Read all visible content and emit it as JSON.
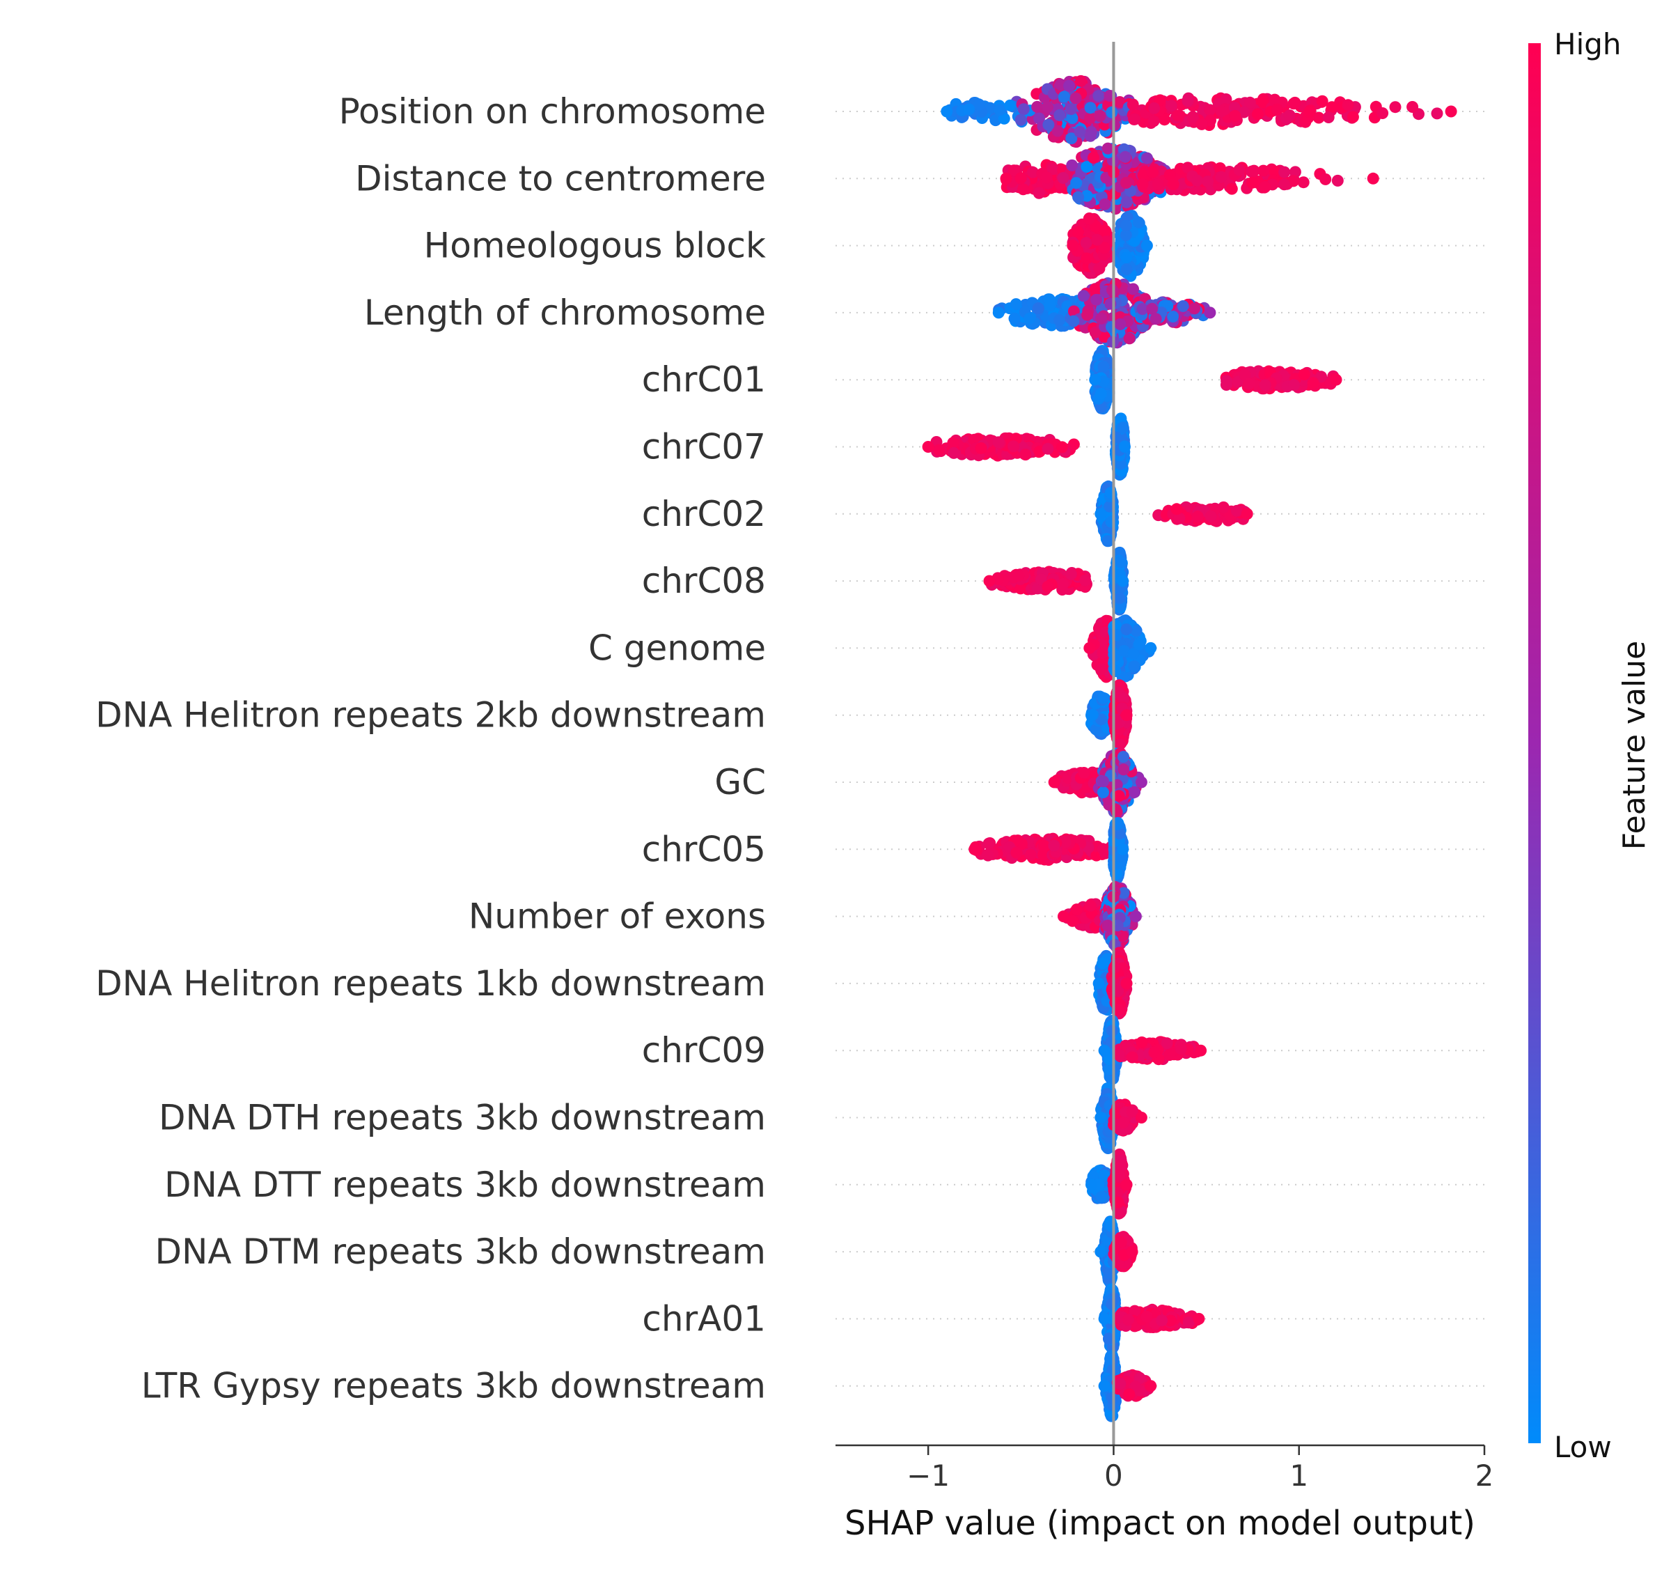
{
  "chart_data": {
    "type": "scatter",
    "subtype": "shap-beeswarm",
    "title": "",
    "xlabel": "SHAP value (impact on model output)",
    "ylabel": "",
    "xlim": [
      -1.5,
      2
    ],
    "x_ticks": [
      -1,
      0,
      1,
      2
    ],
    "x_tick_labels": [
      "−1",
      "0",
      "1",
      "2"
    ],
    "grid": "dotted row guides",
    "zero_line": 0,
    "colorbar": {
      "label": "Feature value",
      "high_label": "High",
      "low_label": "Low",
      "high_color": "#ff0052",
      "mid_color": "#9c27b0",
      "low_color": "#008bfb",
      "placement": "right"
    },
    "features": [
      {
        "name": "Position on chromosome",
        "range": [
          -0.9,
          1.82
        ],
        "groups": [
          {
            "value": "low",
            "from": -0.9,
            "to": -0.5,
            "center": -0.7,
            "spread": 0.15,
            "width": 0.3,
            "weight": 0.08
          },
          {
            "value": "mixed",
            "from": -0.6,
            "to": 0.25,
            "center": -0.2,
            "spread": 0.14,
            "width": 1.0,
            "weight": 0.55
          },
          {
            "value": "high",
            "from": 0.1,
            "to": 1.82,
            "center": 0.6,
            "spread": 0.45,
            "width": 0.45,
            "weight": 0.37
          }
        ]
      },
      {
        "name": "Distance to centromere",
        "range": [
          -0.58,
          1.4
        ],
        "groups": [
          {
            "value": "high",
            "from": -0.58,
            "to": -0.25,
            "center": -0.4,
            "spread": 0.12,
            "width": 0.5,
            "weight": 0.15
          },
          {
            "value": "mixed",
            "from": -0.4,
            "to": 0.3,
            "center": 0.0,
            "spread": 0.13,
            "width": 1.0,
            "weight": 0.55
          },
          {
            "value": "high",
            "from": 0.15,
            "to": 1.4,
            "center": 0.5,
            "spread": 0.3,
            "width": 0.4,
            "weight": 0.3
          }
        ]
      },
      {
        "name": "Homeologous block",
        "range": [
          -0.22,
          0.18
        ],
        "groups": [
          {
            "value": "high",
            "from": -0.22,
            "to": -0.02,
            "center": -0.12,
            "spread": 0.05,
            "width": 0.9,
            "weight": 0.5
          },
          {
            "value": "low",
            "from": 0.02,
            "to": 0.18,
            "center": 0.09,
            "spread": 0.04,
            "width": 1.0,
            "weight": 0.5
          }
        ]
      },
      {
        "name": "Length of chromosome",
        "range": [
          -0.62,
          0.52
        ],
        "groups": [
          {
            "value": "low",
            "from": -0.62,
            "to": -0.1,
            "center": -0.3,
            "spread": 0.15,
            "width": 0.45,
            "weight": 0.3
          },
          {
            "value": "mixed",
            "from": -0.25,
            "to": 0.25,
            "center": 0.0,
            "spread": 0.1,
            "width": 1.0,
            "weight": 0.5
          },
          {
            "value": "mixed",
            "from": 0.1,
            "to": 0.52,
            "center": 0.3,
            "spread": 0.1,
            "width": 0.35,
            "weight": 0.2
          }
        ]
      },
      {
        "name": "chrC01",
        "range": [
          -0.1,
          1.2
        ],
        "groups": [
          {
            "value": "low",
            "from": -0.1,
            "to": -0.02,
            "center": -0.06,
            "spread": 0.02,
            "width": 0.95,
            "weight": 0.75
          },
          {
            "value": "high",
            "from": 0.6,
            "to": 1.2,
            "center": 0.85,
            "spread": 0.18,
            "width": 0.3,
            "weight": 0.25
          }
        ]
      },
      {
        "name": "chrC07",
        "range": [
          -1.0,
          0.06
        ],
        "groups": [
          {
            "value": "high",
            "from": -1.0,
            "to": -0.2,
            "center": -0.6,
            "spread": 0.22,
            "width": 0.3,
            "weight": 0.3
          },
          {
            "value": "low",
            "from": 0.01,
            "to": 0.06,
            "center": 0.035,
            "spread": 0.012,
            "width": 0.95,
            "weight": 0.7
          }
        ]
      },
      {
        "name": "chrC02",
        "range": [
          -0.07,
          0.72
        ],
        "groups": [
          {
            "value": "low",
            "from": -0.07,
            "to": 0.0,
            "center": -0.03,
            "spread": 0.015,
            "width": 0.9,
            "weight": 0.82
          },
          {
            "value": "high",
            "from": 0.21,
            "to": 0.72,
            "center": 0.5,
            "spread": 0.15,
            "width": 0.25,
            "weight": 0.18
          }
        ]
      },
      {
        "name": "chrC08",
        "range": [
          -0.67,
          0.05
        ],
        "groups": [
          {
            "value": "high",
            "from": -0.67,
            "to": -0.13,
            "center": -0.35,
            "spread": 0.16,
            "width": 0.3,
            "weight": 0.3
          },
          {
            "value": "low",
            "from": 0.0,
            "to": 0.05,
            "center": 0.03,
            "spread": 0.01,
            "width": 0.95,
            "weight": 0.7
          }
        ]
      },
      {
        "name": "C genome",
        "range": [
          -0.13,
          0.2
        ],
        "groups": [
          {
            "value": "high",
            "from": -0.13,
            "to": 0.0,
            "center": -0.04,
            "spread": 0.03,
            "width": 0.95,
            "weight": 0.5
          },
          {
            "value": "low",
            "from": 0.0,
            "to": 0.2,
            "center": 0.05,
            "spread": 0.05,
            "width": 0.95,
            "weight": 0.5
          }
        ]
      },
      {
        "name": "DNA Helitron repeats 2kb downstream",
        "range": [
          -0.12,
          0.07
        ],
        "groups": [
          {
            "value": "low",
            "from": -0.12,
            "to": -0.03,
            "center": -0.07,
            "spread": 0.025,
            "width": 0.65,
            "weight": 0.35
          },
          {
            "value": "high",
            "from": -0.01,
            "to": 0.07,
            "center": 0.035,
            "spread": 0.015,
            "width": 1.0,
            "weight": 0.65
          }
        ]
      },
      {
        "name": "GC",
        "range": [
          -0.32,
          0.15
        ],
        "groups": [
          {
            "value": "high",
            "from": -0.32,
            "to": -0.05,
            "center": -0.15,
            "spread": 0.08,
            "width": 0.35,
            "weight": 0.25
          },
          {
            "value": "mixed",
            "from": -0.08,
            "to": 0.15,
            "center": 0.02,
            "spread": 0.04,
            "width": 1.0,
            "weight": 0.75
          }
        ]
      },
      {
        "name": "chrC05",
        "range": [
          -0.75,
          0.05
        ],
        "groups": [
          {
            "value": "high",
            "from": -0.75,
            "to": -0.01,
            "center": -0.35,
            "spread": 0.2,
            "width": 0.35,
            "weight": 0.35
          },
          {
            "value": "low",
            "from": 0.0,
            "to": 0.05,
            "center": 0.02,
            "spread": 0.012,
            "width": 0.95,
            "weight": 0.65
          }
        ]
      },
      {
        "name": "Number of exons",
        "range": [
          -0.27,
          0.12
        ],
        "groups": [
          {
            "value": "high",
            "from": -0.27,
            "to": -0.02,
            "center": -0.1,
            "spread": 0.06,
            "width": 0.4,
            "weight": 0.25
          },
          {
            "value": "mixed",
            "from": -0.05,
            "to": 0.12,
            "center": 0.02,
            "spread": 0.035,
            "width": 1.0,
            "weight": 0.75
          }
        ]
      },
      {
        "name": "DNA Helitron repeats 1kb downstream",
        "range": [
          -0.08,
          0.07
        ],
        "groups": [
          {
            "value": "low",
            "from": -0.08,
            "to": -0.01,
            "center": -0.04,
            "spread": 0.02,
            "width": 0.9,
            "weight": 0.4
          },
          {
            "value": "high",
            "from": -0.01,
            "to": 0.07,
            "center": 0.03,
            "spread": 0.015,
            "width": 1.0,
            "weight": 0.6
          }
        ]
      },
      {
        "name": "chrC09",
        "range": [
          -0.05,
          0.47
        ],
        "groups": [
          {
            "value": "low",
            "from": -0.05,
            "to": 0.02,
            "center": -0.01,
            "spread": 0.012,
            "width": 1.0,
            "weight": 0.7
          },
          {
            "value": "high",
            "from": 0.03,
            "to": 0.47,
            "center": 0.2,
            "spread": 0.12,
            "width": 0.3,
            "weight": 0.3
          }
        ]
      },
      {
        "name": "DNA DTH repeats 3kb downstream",
        "range": [
          -0.07,
          0.15
        ],
        "groups": [
          {
            "value": "low",
            "from": -0.07,
            "to": 0.0,
            "center": -0.03,
            "spread": 0.015,
            "width": 1.0,
            "weight": 0.7
          },
          {
            "value": "high",
            "from": 0.0,
            "to": 0.15,
            "center": 0.05,
            "spread": 0.03,
            "width": 0.45,
            "weight": 0.3
          }
        ]
      },
      {
        "name": "DNA DTT repeats 3kb downstream",
        "range": [
          -0.12,
          0.07
        ],
        "groups": [
          {
            "value": "low",
            "from": -0.12,
            "to": -0.03,
            "center": -0.07,
            "spread": 0.025,
            "width": 0.5,
            "weight": 0.3
          },
          {
            "value": "high",
            "from": -0.01,
            "to": 0.07,
            "center": 0.03,
            "spread": 0.012,
            "width": 1.0,
            "weight": 0.7
          }
        ]
      },
      {
        "name": "DNA DTM repeats 3kb downstream",
        "range": [
          -0.07,
          0.1
        ],
        "groups": [
          {
            "value": "low",
            "from": -0.07,
            "to": 0.0,
            "center": -0.02,
            "spread": 0.012,
            "width": 1.0,
            "weight": 0.7
          },
          {
            "value": "high",
            "from": 0.0,
            "to": 0.1,
            "center": 0.05,
            "spread": 0.02,
            "width": 0.5,
            "weight": 0.3
          }
        ]
      },
      {
        "name": "chrA01",
        "range": [
          -0.05,
          0.46
        ],
        "groups": [
          {
            "value": "low",
            "from": -0.05,
            "to": 0.02,
            "center": -0.01,
            "spread": 0.012,
            "width": 1.0,
            "weight": 0.72
          },
          {
            "value": "high",
            "from": 0.03,
            "to": 0.46,
            "center": 0.2,
            "spread": 0.12,
            "width": 0.3,
            "weight": 0.28
          }
        ]
      },
      {
        "name": "LTR Gypsy repeats 3kb downstream",
        "range": [
          -0.05,
          0.2
        ],
        "groups": [
          {
            "value": "low",
            "from": -0.05,
            "to": 0.02,
            "center": -0.01,
            "spread": 0.012,
            "width": 1.0,
            "weight": 0.7
          },
          {
            "value": "high",
            "from": 0.02,
            "to": 0.2,
            "center": 0.1,
            "spread": 0.04,
            "width": 0.35,
            "weight": 0.3
          }
        ]
      }
    ]
  }
}
